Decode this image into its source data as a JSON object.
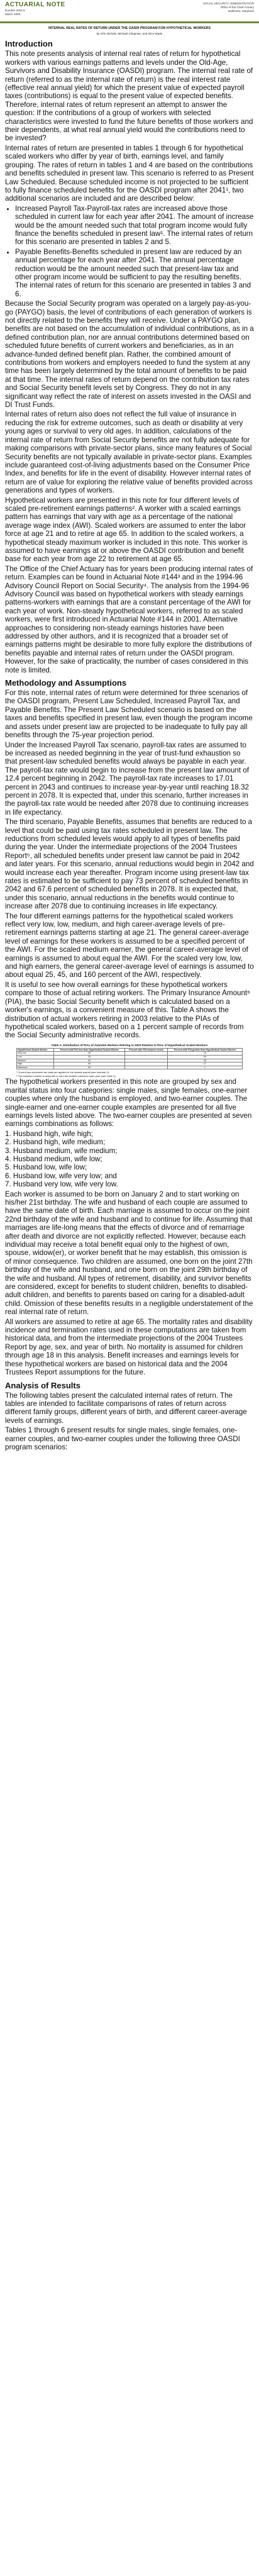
{
  "header": {
    "brand": "ACTUARIAL NOTE",
    "number_lines": [
      "Number 2004.5",
      "March 2005"
    ],
    "agency_lines": [
      "SOCIAL SECURITY ADMINISTRATION",
      "Office of the Chief Actuary",
      "Baltimore, Maryland"
    ]
  },
  "title": "INTERNAL REAL RATES OF RETURN UNDER THE OASDI PROGRAM FOR HYPOTHETICAL WORKERS",
  "authors": "by Orlo Nichols, Michael Clingman, and Alice Wade",
  "sections": [
    {
      "heading": "Introduction",
      "blocks": [
        {
          "t": "p",
          "text": "This note presents analysis of internal real rates of return for hypothetical workers with various earnings patterns and levels under the Old-Age, Survivors and Disability Insurance (OASDI) program. The internal real rate of return (referred to as the internal rate of return) is the real interest rate (effective real annual yield) for which the present value of expected payroll taxes (contributions) is equal to the present value of expected benefits. Therefore, internal rates of return represent an attempt to answer the question: If the contributions of a group of workers with selected characteristics were invested to fund the future benefits of those workers and their dependents, at what real annual yield would the contributions need to be invested?"
        },
        {
          "t": "p",
          "text": "Internal rates of return are presented in tables 1 through 6 for hypothetical scaled workers who differ by year of birth, earnings level, and family grouping. The rates of return in tables 1 and 4 are based on the contributions and benefits scheduled in present law. This scenario is referred to as Present Law Scheduled. Because scheduled income is not projected to be sufficient to fully finance scheduled benefits for the OASDI program after 2041¹, two additional scenarios are included and are described below:"
        },
        {
          "t": "ul",
          "items": [
            "Increased Payroll Tax-Payroll-tax rates are increased above those scheduled in current law for each year after 2041. The amount of increase would be the amount needed such that total program income would fully finance the benefits scheduled in present law¹. The internal rates of return for this scenario are presented in tables 2 and 5.",
            "Payable Benefits-Benefits scheduled in present law are reduced by an annual percentage for each year after 2041. The annual percentage reduction would be the amount needed such that present-law tax and other program income would be sufficient to pay the resulting benefits. The internal rates of return for this scenario are presented in tables 3 and 6."
          ]
        },
        {
          "t": "p",
          "text": "Because the Social Security program was operated on a largely pay-as-you-go (PAYGO) basis, the level of contributions of each generation of workers is not directly related to the benefits they will receive. Under a PAYGO plan, benefits are not based on the accumulation of individual contributions, as in a defined contribution plan, nor are annual contributions determined based on scheduled future benefits of current workers and beneficiaries, as in an advance-funded defined benefit plan. Rather, the combined amount of contributions from workers and employers needed to fund the system at any time has been largely determined by the total amount of benefits to be paid at that time. The internal rates of return depend on the contribution tax rates and Social Security benefit levels set by Congress. They do not in any significant way reflect the rate of interest on assets invested in the OASI and DI Trust Funds."
        },
        {
          "t": "p",
          "text": "Internal rates of return also does not reflect the full value of insurance in reducing the risk for extreme outcomes, such as death or disability at very young ages or survival to very old ages. In addition, calculations of the internal rate of return from Social Security benefits are not fully adequate for making comparisons with private-sector plans, since many features of Social Security benefits are not typically available in private-sector plans. Examples include guaranteed cost-of-living adjustments based on the Consumer Price Index, and benefits for life in the event of disability. However internal rates of return are of value for exploring the relative value of benefits provided across generations and types of workers."
        },
        {
          "t": "p",
          "text": "Hypothetical workers are presented in this note for four different levels of scaled pre-retirement earnings patterns². A worker with a scaled earnings pattern has earnings that vary with age as a percentage of the national average wage index (AWI). Scaled workers are assumed to enter the labor force at age 21 and to retire at age 65. In addition to the scaled workers, a hypothetical steady maximum worker is included in this note. This worker is assumed to have earnings at or above the OASDI contribution and benefit base for each year from age 22 to retirement at age 65."
        },
        {
          "t": "p",
          "text": "The Office of the Chief Actuary has for years been producing internal rates of return. Examples can be found in Actuarial Note #144³ and in the 1994-96 Advisory Council Report on Social Security⁴. The analysis from the 1994-96 Advisory Council was based on hypothetical workers with steady earnings patterns-workers with earnings that are a constant percentage of the AWI for each year of work. Non-steady hypothetical workers, referred to as scaled workers, were first introduced in Actuarial Note #144 in 2001. Alternative approaches to considering non-steady earnings histories have been addressed by other authors, and it is recognized that a broader set of earnings patterns might be desirable to more fully explore the distributions of benefits payable and internal rates of return under the OASDI program. However, for the sake of practicality, the number of cases considered in this note is limited."
        }
      ]
    },
    {
      "heading": "Methodology and Assumptions",
      "blocks": [
        {
          "t": "p",
          "text": "For this note, internal rates of return were determined for three scenarios of the OASDI program, Present Law Scheduled, Increased Payroll Tax, and Payable Benefits. The Present Law Scheduled scenario is based on the taxes and benefits specified in present law, even though the program income and assets under present law are projected to be inadequate to fully pay all benefits through the 75-year projection period."
        },
        {
          "t": "p",
          "text": "Under the Increased Payroll Tax scenario, payroll-tax rates are assumed to be increased as needed beginning in the year of trust-fund exhaustion so that present-law scheduled benefits would always be payable in each year. The payroll-tax rate would begin to increase from the present law amount of 12.4 percent beginning in 2042. The payroll-tax rate increases to 17.01 percent in 2043 and continues to increase year-by-year until reaching 18.32 percent in 2078. It is expected that, under this scenario, further increases in the payroll-tax rate would be needed after 2078 due to continuing increases in life expectancy."
        },
        {
          "t": "p",
          "text": "The third scenario, Payable Benefits, assumes that benefits are reduced to a level that could be paid using tax rates scheduled in present law. The reductions from scheduled levels would apply to all types of benefits paid during the year. Under the intermediate projections of the 2004 Trustees Report⁵, all scheduled benefits under present law cannot be paid in 2042 and later years. For this scenario, annual reductions would begin in 2042 and would increase each year thereafter. Program income using present-law tax rates is estimated to be sufficient to pay 73 percent of scheduled benefits in 2042 and 67.6 percent of scheduled benefits in 2078. It is expected that, under this scenario, annual reductions in the benefits would continue to increase after 2078 due to continuing increases in life expectancy."
        },
        {
          "t": "p",
          "text": "The four different earnings patterns for the hypothetical scaled workers reflect very low, low, medium, and high career-average levels of pre-retirement earnings patterns starting at age 21. The general career-average level of earnings for these workers is assumed to be a specified percent of the AWI. For the scaled medium earner, the general career-average level of earnings is assumed to about equal the AWI. For the scaled very low, low, and high earners, the general career-average level of earnings is assumed to about equal 25, 45, and 160 percent of the AWI, respectively."
        },
        {
          "t": "p",
          "text": "It is useful to see how overall earnings for these hypothetical workers compare to those of actual retiring workers. The Primary Insurance Amount⁶ (PIA), the basic Social Security benefit which is calculated based on a worker's earnings, is a convenient measure of this. Table A shows the distribution of actual workers retiring in 2003 relative to the PIAs of hypothetical scaled workers, based on a 1 percent sample of records from the Social Security administrative records."
        }
      ]
    }
  ],
  "table_a": {
    "caption": "Table A. Distribution of PIAs of Awarded Workers Retiring in 2003 Relative to PIAs of Hypothetical Scaled Workers",
    "headers": [
      "Hypothetical Scaled Worker",
      "Percent with PIA less than Hypothetical Scaled Worker",
      "Percent with PIA between levels",
      "Percent with PIA greater than Hypothetical Scaled Worker"
    ],
    "rows": [
      [
        "Very low",
        "25",
        "",
        "75"
      ],
      [
        "Low",
        "35",
        "",
        "65"
      ],
      [
        "Medium",
        "64",
        "",
        "36"
      ],
      [
        "High",
        "83",
        "",
        "17"
      ],
      [
        "Maximum",
        "99",
        "",
        "1"
      ]
    ]
  },
  "footnotes": [
    "¹ Current-law scheduled tax rates are applied to the taxable payroll (see footnote 2).",
    "² The maximum worker is assumed to earn the taxable maximum each year (see Table 2)."
  ],
  "after_table": [
    {
      "t": "p",
      "text": "The hypothetical workers presented in this note are grouped by sex and marital status into four categories: single males, single females, one-earner couples where only the husband is employed, and two-earner couples. The single-earner and one-earner couple examples are presented for all five earnings levels listed above. The two-earner couples are presented at seven earnings combinations as follows:"
    },
    {
      "t": "ol",
      "items": [
        "1. Husband high, wife high;",
        "2. Husband high, wife medium;",
        "3. Husband medium, wife medium;",
        "4. Husband medium, wife low;",
        "5. Husband low, wife low;",
        "6. Husband low, wife very low; and",
        "7. Husband very low, wife very low."
      ]
    },
    {
      "t": "p",
      "text": "Each worker is assumed to be born on January 2 and to start working on his/her 21st birthday. The wife and husband of each couple are assumed to have the same date of birth. Each marriage is assumed to occur on the joint 22nd birthday of the wife and husband and to continue for life. Assuming that marriages are life-long means that the effects of divorce and of remarriage after death and divorce are not explicitly reflected. However, because each individual may receive a total benefit equal only to the highest of own, spouse, widow(er), or worker benefit that he may establish, this omission is of minor consequence. Two children are assumed, one born on the joint 27th birthday of the wife and husband, and one born on the joint 29th birthday of the wife and husband. All types of retirement, disability, and survivor benefits are considered, except for benefits to student children, benefits to disabled-adult children, and benefits to parents based on caring for a disabled-adult child. Omission of these benefits results in a negligible understatement of the real internal rate of return."
    },
    {
      "t": "p",
      "text": "All workers are assumed to retire at age 65. The mortality rates and disability incidence and termination rates used in these computations are taken from historical data, and from the intermediate projections of the 2004 Trustees Report by age, sex, and year of birth. No mortality is assumed for children through age 18 in this analysis. Benefit increases and earnings levels for these hypothetical workers are based on historical data and the 2004 Trustees Report assumptions for the future."
    }
  ],
  "analysis": {
    "heading": "Analysis of Results",
    "blocks": [
      {
        "t": "p",
        "text": "The following tables present the calculated internal rates of return. The tables are intended to facilitate comparisons of rates of return across different family groups, different years of birth, and different career-average levels of earnings."
      },
      {
        "t": "p",
        "text": "Tables 1 through 6 present results for single males, single females, one-earner couples, and two-earner couples under the following three OASDI program scenarios:"
      }
    ]
  }
}
